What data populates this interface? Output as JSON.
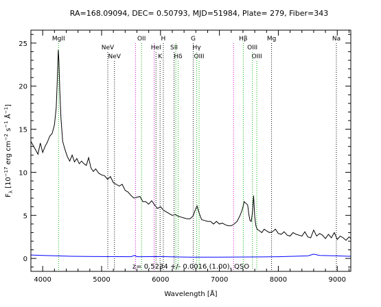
{
  "chart_data": {
    "type": "line",
    "title": "RA=168.09094, DEC= 0.50793, MJD=51984, Plate= 279, Fiber=343",
    "xlabel": "Wavelength [Å]",
    "ylabel_parts": {
      "f": "F",
      "sub": "λ",
      "open": " [10",
      "e1": "−17",
      "mid1": " erg cm",
      "e2": "−2",
      "mid2": " s",
      "e3": "−1",
      "mid3": " Å",
      "e4": "−1",
      "close": "]"
    },
    "xlim": [
      3800,
      9230
    ],
    "ylim": [
      -1.5,
      26.5
    ],
    "x_ticks": [
      4000,
      5000,
      6000,
      7000,
      8000,
      9000
    ],
    "y_ticks": [
      0,
      5,
      10,
      15,
      20,
      25
    ],
    "annotation": "z=  0.5234 +/-  0.0016 (1.00), QSO",
    "line_markers": [
      {
        "label": "MgII",
        "x": 4270,
        "color": "#00b000",
        "row": 0
      },
      {
        "label": "NeV",
        "x": 5105,
        "color": "#000000",
        "row": 1
      },
      {
        "label": "NeV",
        "x": 5218,
        "color": "#000000",
        "row": 2
      },
      {
        "label": "OII",
        "x": 5678,
        "color": "#00b000",
        "row": 0
      },
      {
        "label": "",
        "x": 5575,
        "color": "#cc00cc",
        "row": 0
      },
      {
        "label": "HeI",
        "x": 5923,
        "color": "#000000",
        "row": 1
      },
      {
        "label": "K",
        "x": 5993,
        "color": "#000000",
        "row": 2
      },
      {
        "label": "H",
        "x": 6048,
        "color": "#000000",
        "row": 0
      },
      {
        "label": "",
        "x": 5893,
        "color": "#cc00cc",
        "row": 0
      },
      {
        "label": "SII",
        "x": 6230,
        "color": "#000000",
        "row": 1
      },
      {
        "label": "",
        "x": 6260,
        "color": "#00b000",
        "row": 0
      },
      {
        "label": "Hδ",
        "x": 6300,
        "color": "#00b000",
        "row": 2
      },
      {
        "label": "G",
        "x": 6555,
        "color": "#000000",
        "row": 0
      },
      {
        "label": "Hγ",
        "x": 6615,
        "color": "#00b000",
        "row": 1
      },
      {
        "label": "OIII",
        "x": 6655,
        "color": "#00b000",
        "row": 2
      },
      {
        "label": "",
        "x": 7240,
        "color": "#cc00cc",
        "row": 0
      },
      {
        "label": "Hβ",
        "x": 7405,
        "color": "#00b000",
        "row": 0
      },
      {
        "label": "OIII",
        "x": 7560,
        "color": "#00b000",
        "row": 1
      },
      {
        "label": "OIII",
        "x": 7635,
        "color": "#00b000",
        "row": 2
      },
      {
        "label": "Mg",
        "x": 7885,
        "color": "#000000",
        "row": 0
      },
      {
        "label": "Na",
        "x": 8985,
        "color": "#000000",
        "row": 0
      }
    ],
    "series": [
      {
        "color": "#000000",
        "x": [
          3800,
          3840,
          3880,
          3920,
          3960,
          4000,
          4040,
          4080,
          4120,
          4160,
          4200,
          4230,
          4250,
          4265,
          4275,
          4290,
          4310,
          4340,
          4380,
          4420,
          4460,
          4500,
          4540,
          4580,
          4620,
          4660,
          4700,
          4740,
          4780,
          4820,
          4860,
          4900,
          4950,
          5000,
          5050,
          5100,
          5150,
          5200,
          5250,
          5300,
          5350,
          5400,
          5450,
          5500,
          5550,
          5600,
          5650,
          5700,
          5750,
          5800,
          5850,
          5900,
          5950,
          6000,
          6050,
          6100,
          6150,
          6200,
          6250,
          6300,
          6350,
          6400,
          6450,
          6500,
          6550,
          6600,
          6620,
          6650,
          6680,
          6700,
          6750,
          6800,
          6850,
          6900,
          6950,
          7000,
          7050,
          7100,
          7150,
          7200,
          7250,
          7300,
          7350,
          7380,
          7400,
          7420,
          7450,
          7480,
          7500,
          7520,
          7540,
          7560,
          7580,
          7600,
          7620,
          7640,
          7680,
          7720,
          7760,
          7800,
          7850,
          7900,
          7950,
          8000,
          8050,
          8100,
          8150,
          8200,
          8250,
          8300,
          8350,
          8400,
          8450,
          8500,
          8550,
          8600,
          8650,
          8700,
          8750,
          8800,
          8850,
          8900,
          8950,
          9000,
          9050,
          9100,
          9150,
          9200,
          9230
        ],
        "y": [
          13.6,
          13.1,
          12.6,
          12.1,
          13.4,
          12.3,
          13.0,
          13.5,
          14.2,
          14.5,
          15.5,
          17.5,
          21.0,
          24.2,
          23.0,
          19.5,
          16.3,
          13.6,
          12.6,
          11.8,
          11.3,
          12.0,
          11.2,
          11.6,
          11.0,
          11.3,
          11.0,
          10.8,
          11.7,
          10.5,
          10.1,
          10.4,
          9.9,
          9.7,
          9.6,
          9.2,
          9.5,
          8.8,
          8.6,
          8.4,
          8.6,
          7.9,
          7.7,
          7.3,
          7.0,
          7.1,
          7.2,
          6.6,
          6.6,
          6.3,
          6.7,
          6.2,
          5.8,
          6.0,
          5.6,
          5.4,
          5.2,
          5.0,
          5.1,
          4.9,
          4.8,
          4.7,
          4.6,
          4.6,
          4.9,
          5.8,
          6.1,
          5.4,
          4.8,
          4.5,
          4.4,
          4.3,
          4.3,
          4.0,
          4.3,
          4.0,
          4.1,
          3.9,
          3.8,
          3.8,
          4.0,
          4.3,
          5.0,
          5.5,
          6.0,
          6.6,
          6.4,
          6.2,
          5.1,
          4.4,
          4.3,
          5.3,
          7.3,
          4.8,
          3.8,
          3.4,
          3.2,
          3.0,
          3.4,
          3.2,
          3.0,
          3.1,
          3.4,
          2.9,
          2.8,
          3.1,
          2.7,
          2.6,
          3.0,
          2.8,
          2.7,
          2.6,
          3.1,
          2.5,
          2.4,
          3.3,
          2.6,
          2.9,
          2.7,
          2.3,
          2.8,
          2.4,
          3.0,
          2.2,
          2.6,
          2.4,
          2.1,
          2.5,
          2.3
        ]
      },
      {
        "color": "#0000ff",
        "x": [
          3800,
          4000,
          4500,
          5000,
          5500,
          5560,
          5600,
          6000,
          6500,
          7000,
          7500,
          8000,
          8500,
          8600,
          8700,
          9000,
          9230
        ],
        "y": [
          0.4,
          0.35,
          0.25,
          0.22,
          0.2,
          0.35,
          0.2,
          0.22,
          0.15,
          0.15,
          0.17,
          0.2,
          0.3,
          0.5,
          0.35,
          0.3,
          0.25
        ]
      }
    ]
  }
}
